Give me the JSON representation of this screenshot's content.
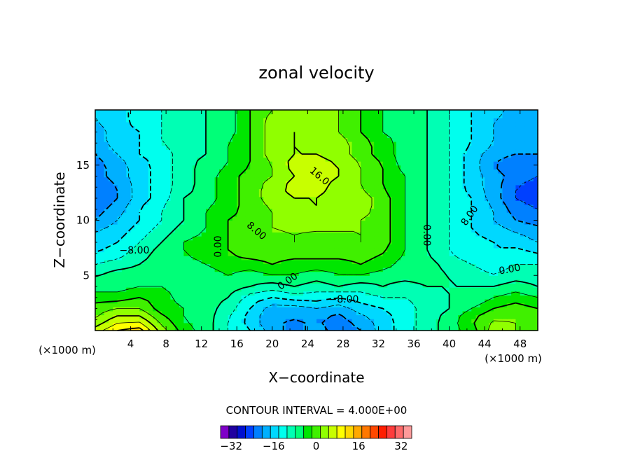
{
  "chart_data": {
    "type": "heatmap",
    "title": "zonal velocity",
    "xlabel": "X−coordinate",
    "ylabel": "Z−coordinate",
    "x_unit_label": "(×1000 m)",
    "y_unit_label": "(×1000 m)",
    "xlim": [
      0,
      50
    ],
    "ylim": [
      0,
      20
    ],
    "x_ticks": [
      "4",
      "8",
      "12",
      "16",
      "20",
      "24",
      "28",
      "32",
      "36",
      "40",
      "44",
      "48"
    ],
    "y_ticks": [
      "5",
      "10",
      "15"
    ],
    "contour_interval_label": "CONTOUR INTERVAL = 4.000E+00",
    "contour_interval": 4,
    "contour_labels": [
      "16.0",
      "8.00",
      "0.00",
      "−8.00"
    ],
    "value_range": [
      -36,
      36
    ],
    "colorbar_ticks": [
      "−32",
      "−16",
      "0",
      "16",
      "32"
    ],
    "colorbar_tick_values": [
      -32,
      -16,
      0,
      16,
      32
    ],
    "colorbar_colors": [
      "#7f00c8",
      "#2000a0",
      "#0010d0",
      "#0040ff",
      "#0080ff",
      "#00b0ff",
      "#00d8ff",
      "#00ffee",
      "#00ffb4",
      "#00ff78",
      "#00e600",
      "#40f000",
      "#90ff00",
      "#c8ff00",
      "#ffff00",
      "#ffd800",
      "#ffa800",
      "#ff7800",
      "#ff4800",
      "#ff1e00",
      "#ff3c3c",
      "#ff6a6a",
      "#ff9a9a"
    ],
    "colorbar_boundaries": [
      -36,
      -32,
      -28,
      -24,
      -20,
      -16,
      -12,
      -8,
      -4,
      0,
      4,
      8,
      12,
      16,
      20,
      24,
      28,
      32,
      36
    ],
    "x": [
      0,
      2.5,
      5,
      7.5,
      10,
      12.5,
      15,
      17.5,
      20,
      22.5,
      25,
      27.5,
      30,
      32.5,
      35,
      37.5,
      40,
      42.5,
      45,
      47.5,
      50
    ],
    "y": [
      0,
      1,
      2,
      3,
      4,
      5,
      6,
      7,
      8,
      9,
      10,
      11,
      12,
      13,
      14,
      15,
      16,
      17,
      18,
      19,
      20
    ],
    "z": [
      [
        18,
        24,
        26,
        14,
        6,
        2,
        -4,
        -8,
        -14,
        -18,
        -14,
        -18,
        -16,
        -10,
        -6,
        -2,
        2,
        6,
        14,
        12,
        10
      ],
      [
        12,
        18,
        18,
        10,
        4,
        2,
        -4,
        -10,
        -16,
        -16,
        -16,
        -18,
        -14,
        -10,
        -6,
        -2,
        2,
        8,
        12,
        12,
        10
      ],
      [
        10,
        12,
        12,
        6,
        4,
        2,
        -2,
        -8,
        -14,
        -14,
        -12,
        -14,
        -10,
        -8,
        -6,
        -2,
        0,
        4,
        8,
        10,
        8
      ],
      [
        6,
        6,
        8,
        6,
        2,
        2,
        0,
        -6,
        -8,
        -6,
        -6,
        -8,
        -6,
        -4,
        -4,
        -2,
        0,
        0,
        4,
        6,
        4
      ],
      [
        2,
        2,
        4,
        4,
        2,
        2,
        2,
        0,
        -2,
        0,
        -2,
        0,
        -2,
        0,
        -2,
        0,
        0,
        0,
        0,
        2,
        0
      ],
      [
        0,
        2,
        2,
        2,
        2,
        2,
        4,
        2,
        4,
        4,
        2,
        4,
        4,
        2,
        2,
        2,
        0,
        -2,
        -4,
        -2,
        -2
      ],
      [
        -4,
        -2,
        0,
        2,
        2,
        4,
        6,
        6,
        8,
        6,
        6,
        6,
        8,
        6,
        2,
        2,
        -2,
        -4,
        -6,
        -4,
        -4
      ],
      [
        -8,
        -6,
        -2,
        2,
        4,
        6,
        8,
        10,
        10,
        10,
        10,
        10,
        10,
        8,
        4,
        0,
        -4,
        -6,
        -8,
        -6,
        -8
      ],
      [
        -10,
        -8,
        -4,
        0,
        4,
        6,
        8,
        10,
        10,
        12,
        10,
        10,
        12,
        10,
        4,
        0,
        -4,
        -6,
        -8,
        -10,
        -12
      ],
      [
        -12,
        -10,
        -6,
        -2,
        2,
        4,
        8,
        10,
        12,
        12,
        12,
        12,
        12,
        10,
        4,
        0,
        -4,
        -8,
        -10,
        -12,
        -14
      ],
      [
        -16,
        -12,
        -8,
        -4,
        0,
        4,
        8,
        10,
        12,
        14,
        14,
        14,
        12,
        10,
        4,
        0,
        -4,
        -8,
        -12,
        -16,
        -18
      ],
      [
        -18,
        -14,
        -8,
        -4,
        0,
        4,
        6,
        10,
        12,
        14,
        16,
        14,
        14,
        10,
        4,
        0,
        -4,
        -8,
        -12,
        -18,
        -20
      ],
      [
        -20,
        -16,
        -10,
        -6,
        0,
        2,
        6,
        10,
        14,
        16,
        16,
        14,
        14,
        10,
        4,
        0,
        -4,
        -8,
        -14,
        -20,
        -22
      ],
      [
        -20,
        -16,
        -10,
        -6,
        -2,
        2,
        6,
        10,
        14,
        18,
        18,
        14,
        12,
        8,
        4,
        0,
        -4,
        -10,
        -14,
        -20,
        -22
      ],
      [
        -18,
        -14,
        -10,
        -6,
        -2,
        2,
        6,
        10,
        12,
        16,
        18,
        16,
        12,
        8,
        4,
        0,
        -4,
        -10,
        -14,
        -18,
        -20
      ],
      [
        -18,
        -14,
        -10,
        -6,
        -2,
        2,
        4,
        8,
        12,
        18,
        18,
        16,
        12,
        8,
        2,
        0,
        -4,
        -10,
        -16,
        -20,
        -18
      ],
      [
        -16,
        -12,
        -8,
        -6,
        -2,
        0,
        4,
        8,
        14,
        16,
        16,
        14,
        10,
        6,
        2,
        0,
        -4,
        -10,
        -14,
        -16,
        -16
      ],
      [
        -14,
        -10,
        -8,
        -4,
        -2,
        0,
        4,
        8,
        14,
        16,
        14,
        14,
        10,
        6,
        2,
        0,
        -4,
        -8,
        -12,
        -14,
        -14
      ],
      [
        -14,
        -10,
        -8,
        -4,
        -2,
        0,
        2,
        8,
        14,
        16,
        14,
        12,
        8,
        4,
        2,
        0,
        -4,
        -8,
        -12,
        -14,
        -14
      ],
      [
        -12,
        -10,
        -6,
        -4,
        -2,
        0,
        2,
        8,
        14,
        14,
        14,
        12,
        8,
        4,
        2,
        0,
        -4,
        -8,
        -12,
        -14,
        -14
      ],
      [
        -12,
        -10,
        -6,
        -4,
        -2,
        0,
        2,
        8,
        12,
        14,
        14,
        12,
        8,
        4,
        2,
        0,
        -4,
        -8,
        -10,
        -14,
        -14
      ]
    ]
  }
}
